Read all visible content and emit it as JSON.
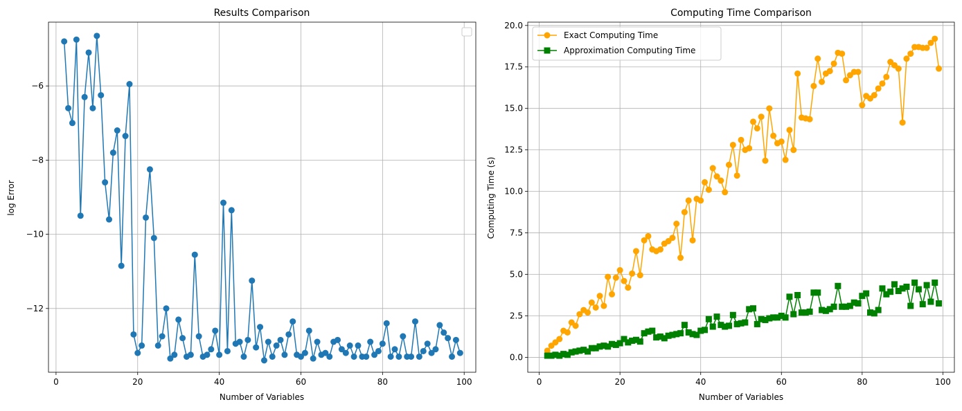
{
  "chart_data": [
    {
      "type": "line",
      "title": "Results Comparison",
      "xlabel": "Number of Variables",
      "ylabel": "log Error",
      "xlim": [
        -1.85,
        102.85
      ],
      "ylim": [
        -13.72,
        -4.28
      ],
      "xticks": [
        0,
        20,
        40,
        60,
        80,
        100
      ],
      "xtick_labels": [
        "0",
        "20",
        "40",
        "60",
        "80",
        "100"
      ],
      "yticks": [
        -6,
        -8,
        -10,
        -12
      ],
      "ytick_labels": [
        "−6",
        "−8",
        "−10",
        "−12"
      ],
      "grid": true,
      "legend": "top-right (empty)",
      "series": [
        {
          "color": "#1f77b4",
          "marker": "circle",
          "x": [
            2,
            3,
            4,
            5,
            6,
            7,
            8,
            9,
            10,
            11,
            12,
            13,
            14,
            15,
            16,
            17,
            18,
            19,
            20,
            21,
            22,
            23,
            24,
            25,
            26,
            27,
            28,
            29,
            30,
            31,
            32,
            33,
            34,
            35,
            36,
            37,
            38,
            39,
            40,
            41,
            42,
            43,
            44,
            45,
            46,
            47,
            48,
            49,
            50,
            51,
            52,
            53,
            54,
            55,
            56,
            57,
            58,
            59,
            60,
            61,
            62,
            63,
            64,
            65,
            66,
            67,
            68,
            69,
            70,
            71,
            72,
            73,
            74,
            75,
            76,
            77,
            78,
            79,
            80,
            81,
            82,
            83,
            84,
            85,
            86,
            87,
            88,
            89,
            90,
            91,
            92,
            93,
            94,
            95,
            96,
            97,
            98,
            99
          ],
          "values": [
            -4.8,
            -6.6,
            -7.0,
            -4.75,
            -9.5,
            -6.3,
            -5.1,
            -6.6,
            -4.65,
            -6.25,
            -8.6,
            -9.6,
            -7.8,
            -7.2,
            -10.85,
            -7.35,
            -5.95,
            -12.7,
            -13.2,
            -13.0,
            -9.55,
            -8.25,
            -10.1,
            -13.0,
            -12.75,
            -12.0,
            -13.35,
            -13.25,
            -12.3,
            -12.8,
            -13.3,
            -13.25,
            -10.55,
            -12.75,
            -13.3,
            -13.25,
            -13.1,
            -12.6,
            -13.25,
            -9.15,
            -13.15,
            -9.35,
            -12.95,
            -12.9,
            -13.3,
            -12.85,
            -11.25,
            -13.05,
            -12.5,
            -13.4,
            -12.9,
            -13.3,
            -13.0,
            -12.85,
            -13.25,
            -12.7,
            -12.35,
            -13.25,
            -13.3,
            -13.2,
            -12.6,
            -13.35,
            -12.9,
            -13.25,
            -13.2,
            -13.3,
            -12.9,
            -12.85,
            -13.1,
            -13.2,
            -13.0,
            -13.3,
            -13.0,
            -13.3,
            -13.3,
            -12.9,
            -13.25,
            -13.15,
            -12.95,
            -12.4,
            -13.3,
            -13.1,
            -13.3,
            -12.75,
            -13.3,
            -13.3,
            -12.35,
            -13.3,
            -13.15,
            -12.95,
            -13.2,
            -13.1,
            -12.45,
            -12.65,
            -12.8,
            -13.3,
            -12.85,
            -13.2
          ]
        }
      ]
    },
    {
      "type": "line",
      "title": "Computing Time Comparison",
      "xlabel": "Number of Variables",
      "ylabel": "Computing Time (s)",
      "xlim": [
        -2.85,
        102.85
      ],
      "ylim": [
        -0.9,
        20.2
      ],
      "xticks": [
        0,
        20,
        40,
        60,
        80,
        100
      ],
      "xtick_labels": [
        "0",
        "20",
        "40",
        "60",
        "80",
        "100"
      ],
      "yticks": [
        0,
        2.5,
        5,
        7.5,
        10,
        12.5,
        15,
        17.5,
        20
      ],
      "ytick_labels": [
        "0.0",
        "2.5",
        "5.0",
        "7.5",
        "10.0",
        "12.5",
        "15.0",
        "17.5",
        "20.0"
      ],
      "grid": true,
      "legend": "top-left",
      "series": [
        {
          "name": "Exact Computing Time",
          "color": "#ffa500",
          "marker": "circle",
          "x": [
            2,
            3,
            4,
            5,
            6,
            7,
            8,
            9,
            10,
            11,
            12,
            13,
            14,
            15,
            16,
            17,
            18,
            19,
            20,
            21,
            22,
            23,
            24,
            25,
            26,
            27,
            28,
            29,
            30,
            31,
            32,
            33,
            34,
            35,
            36,
            37,
            38,
            39,
            40,
            41,
            42,
            43,
            44,
            45,
            46,
            47,
            48,
            49,
            50,
            51,
            52,
            53,
            54,
            55,
            56,
            57,
            58,
            59,
            60,
            61,
            62,
            63,
            64,
            65,
            66,
            67,
            68,
            69,
            70,
            71,
            72,
            73,
            74,
            75,
            76,
            77,
            78,
            79,
            80,
            81,
            82,
            83,
            84,
            85,
            86,
            87,
            88,
            89,
            90,
            91,
            92,
            93,
            94,
            95,
            96,
            97,
            98,
            99
          ],
          "values": [
            0.4,
            0.7,
            0.9,
            1.1,
            1.6,
            1.5,
            2.1,
            1.9,
            2.6,
            2.85,
            2.7,
            3.3,
            3.0,
            3.7,
            3.1,
            4.85,
            3.8,
            4.8,
            5.25,
            4.6,
            4.2,
            5.05,
            6.4,
            4.95,
            7.05,
            7.3,
            6.5,
            6.4,
            6.5,
            6.85,
            7.0,
            7.2,
            8.05,
            6.0,
            8.75,
            9.45,
            7.05,
            9.55,
            9.45,
            10.55,
            10.1,
            11.4,
            10.9,
            10.65,
            9.95,
            11.6,
            12.8,
            10.95,
            13.1,
            12.5,
            12.6,
            14.2,
            13.8,
            14.5,
            11.85,
            15.0,
            13.35,
            12.9,
            13.0,
            11.9,
            13.7,
            12.5,
            17.1,
            14.45,
            14.4,
            14.35,
            16.35,
            18.0,
            16.6,
            17.1,
            17.25,
            17.7,
            18.35,
            18.3,
            16.7,
            17.0,
            17.2,
            17.2,
            15.2,
            15.75,
            15.6,
            15.8,
            16.2,
            16.5,
            16.9,
            17.8,
            17.6,
            17.4,
            14.15,
            18.0,
            18.3,
            18.7,
            18.7,
            18.65,
            18.65,
            18.95,
            19.2,
            17.4
          ]
        },
        {
          "name": "Approximation Computing Time",
          "color": "#008000",
          "marker": "square",
          "x": [
            2,
            3,
            4,
            5,
            6,
            7,
            8,
            9,
            10,
            11,
            12,
            13,
            14,
            15,
            16,
            17,
            18,
            19,
            20,
            21,
            22,
            23,
            24,
            25,
            26,
            27,
            28,
            29,
            30,
            31,
            32,
            33,
            34,
            35,
            36,
            37,
            38,
            39,
            40,
            41,
            42,
            43,
            44,
            45,
            46,
            47,
            48,
            49,
            50,
            51,
            52,
            53,
            54,
            55,
            56,
            57,
            58,
            59,
            60,
            61,
            62,
            63,
            64,
            65,
            66,
            67,
            68,
            69,
            70,
            71,
            72,
            73,
            74,
            75,
            76,
            77,
            78,
            79,
            80,
            81,
            82,
            83,
            84,
            85,
            86,
            87,
            88,
            89,
            90,
            91,
            92,
            93,
            94,
            95,
            96,
            97,
            98,
            99
          ],
          "values": [
            0.1,
            0.1,
            0.15,
            0.1,
            0.2,
            0.15,
            0.3,
            0.35,
            0.4,
            0.45,
            0.35,
            0.55,
            0.55,
            0.65,
            0.7,
            0.65,
            0.8,
            0.75,
            0.85,
            1.1,
            0.9,
            1.0,
            1.05,
            0.95,
            1.45,
            1.55,
            1.6,
            1.2,
            1.25,
            1.15,
            1.3,
            1.35,
            1.4,
            1.45,
            1.95,
            1.5,
            1.4,
            1.35,
            1.6,
            1.65,
            2.3,
            1.85,
            2.45,
            1.95,
            1.85,
            1.9,
            2.55,
            2.0,
            2.05,
            2.1,
            2.9,
            2.95,
            2.0,
            2.3,
            2.25,
            2.35,
            2.4,
            2.4,
            2.5,
            2.4,
            3.65,
            2.6,
            3.75,
            2.7,
            2.7,
            2.75,
            3.9,
            3.9,
            2.85,
            2.8,
            2.9,
            3.05,
            4.3,
            3.05,
            3.05,
            3.1,
            3.3,
            3.25,
            3.7,
            3.85,
            2.7,
            2.65,
            2.85,
            4.15,
            3.8,
            3.95,
            4.4,
            4.0,
            4.15,
            4.25,
            3.1,
            4.5,
            4.1,
            3.2,
            4.35,
            3.35,
            4.5,
            3.25
          ]
        }
      ]
    }
  ]
}
